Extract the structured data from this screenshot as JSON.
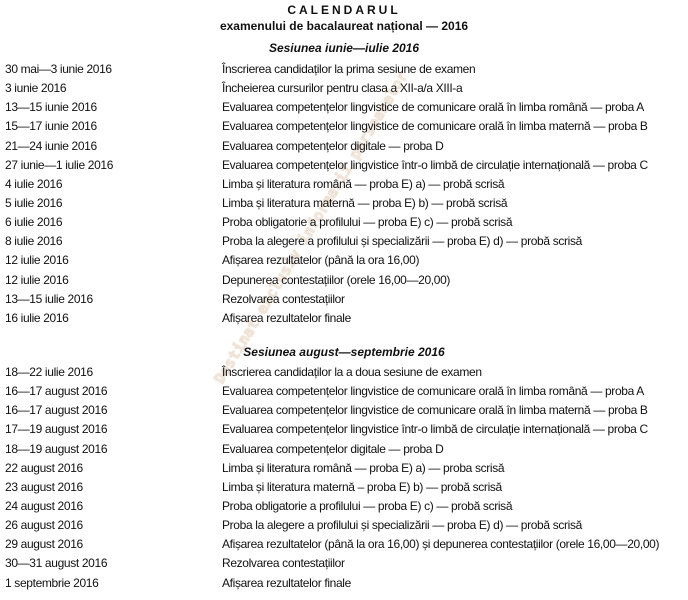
{
  "header": {
    "title": "CALENDARUL",
    "subtitle": "examenului de bacalaureat național — 2016"
  },
  "watermark": "Destinat exclusiv informarii persoanelor",
  "sessions": [
    {
      "heading": "Sesiunea iunie—iulie 2016",
      "rows": [
        {
          "date": "30 mai—3 iunie 2016",
          "event": "Înscrierea candidaților la prima sesiune de examen"
        },
        {
          "date": "3 iunie 2016",
          "event": "Încheierea cursurilor pentru clasa a XII-a/a XIII-a"
        },
        {
          "date": "13—15 iunie 2016",
          "event": "Evaluarea competențelor lingvistice de comunicare orală în limba română — proba A"
        },
        {
          "date": "15—17 iunie 2016",
          "event": "Evaluarea competențelor lingvistice de comunicare orală în limba maternă — proba B"
        },
        {
          "date": "21—24 iunie 2016",
          "event": "Evaluarea competențelor digitale — proba D"
        },
        {
          "date": "27 iunie—1 iulie 2016",
          "event": "Evaluarea competențelor lingvistice într-o limbă de circulație internațională — proba C"
        },
        {
          "date": "4 iulie 2016",
          "event": "Limba și literatura română — proba E) a) — probă scrisă"
        },
        {
          "date": "5 iulie 2016",
          "event": "Limba și literatura maternă — proba E) b) — probă scrisă"
        },
        {
          "date": "6 iulie 2016",
          "event": "Proba obligatorie a profilului — proba E) c) — probă scrisă"
        },
        {
          "date": "8 iulie 2016",
          "event": "Proba la alegere a profilului și specializării — proba E) d) — probă scrisă"
        },
        {
          "date": "12 iulie 2016",
          "event": "Afișarea rezultatelor (până la ora 16,00)"
        },
        {
          "date": "12 iulie 2016",
          "event": "Depunerea contestațiilor (orele 16,00—20,00)"
        },
        {
          "date": "13—15 iulie 2016",
          "event": "Rezolvarea contestațiilor"
        },
        {
          "date": "16 iulie 2016",
          "event": "Afișarea rezultatelor finale"
        }
      ]
    },
    {
      "heading": "Sesiunea august—septembrie 2016",
      "rows": [
        {
          "date": "18—22 iulie 2016",
          "event": "Înscrierea candidaților la a doua sesiune de examen"
        },
        {
          "date": "16—17 august 2016",
          "event": "Evaluarea competențelor lingvistice de comunicare orală în limba română — proba A"
        },
        {
          "date": "16—17 august 2016",
          "event": "Evaluarea competențelor lingvistice de comunicare orală în limba maternă — proba B"
        },
        {
          "date": "17—19 august 2016",
          "event": "Evaluarea competențelor lingvistice într-o limbă de circulație internațională — proba C"
        },
        {
          "date": "18—19 august 2016",
          "event": "Evaluarea competențelor digitale — proba D"
        },
        {
          "date": "22 august 2016",
          "event": "Limba și literatura română — proba E) a) — proba scrisă"
        },
        {
          "date": "23 august 2016",
          "event": "Limba și literatura maternă – proba E) b) — probă scrisă"
        },
        {
          "date": "24 august 2016",
          "event": "Proba obligatorie a profilului — proba E) c) — probă scrisă"
        },
        {
          "date": "26 august 2016",
          "event": "Proba la alegere a profilului și specializării — proba E) d) — probă scrisă"
        },
        {
          "date": "29 august 2016",
          "event": "Afișarea rezultatelor (până la ora 16,00) și depunerea contestațiilor (orele 16,00—20,00)"
        },
        {
          "date": "30—31 august 2016",
          "event": "Rezolvarea contestațiilor"
        },
        {
          "date": "1 septembrie 2016",
          "event": "Afișarea rezultatelor finale"
        }
      ]
    }
  ]
}
